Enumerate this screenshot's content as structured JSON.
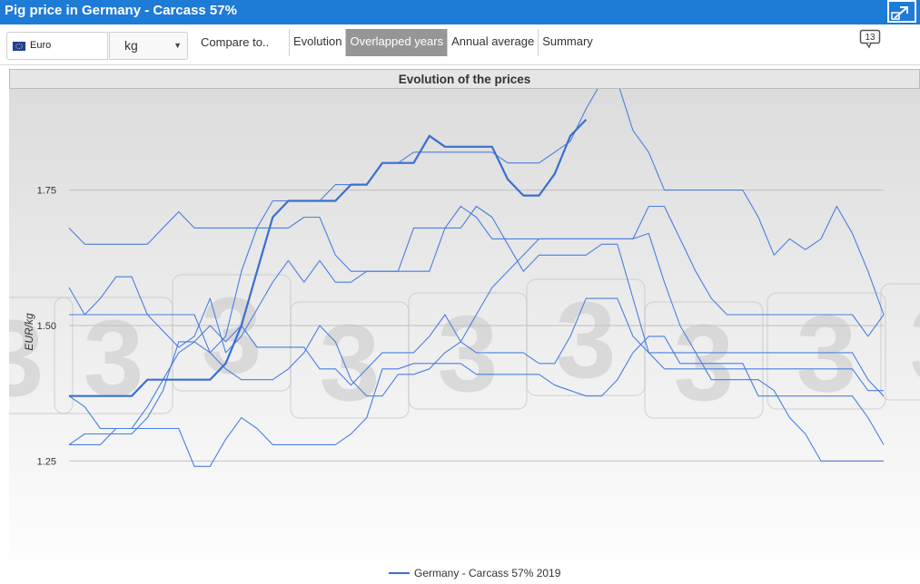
{
  "window": {
    "title": "Pig price in Germany - Carcass 57%"
  },
  "toolbar": {
    "currency": "Euro",
    "unit": "kg",
    "compare_label": "Compare to..",
    "tabs": [
      {
        "label": "Evolution",
        "active": false
      },
      {
        "label": "Overlapped years",
        "active": true
      },
      {
        "label": "Annual average",
        "active": false
      },
      {
        "label": "Summary",
        "active": false
      }
    ],
    "comments_count": "13"
  },
  "colors": {
    "titlebar": "#1e7bd6",
    "series_main": "#3a6fd0",
    "series_other": "#4a7fe0",
    "active_tab": "#969696"
  },
  "chart_data": {
    "type": "line",
    "title": "Evolution of the prices",
    "ylabel": "EUR/kg",
    "ylim": [
      1.1,
      1.92
    ],
    "yticks": [
      1.25,
      1.5,
      1.75
    ],
    "ytick_labels": [
      "1.25",
      "1.50",
      "1.75"
    ],
    "grid": true,
    "legend": {
      "position": "bottom-center",
      "entries": [
        "Germany - Carcass 57% 2019"
      ]
    },
    "watermark": "3",
    "x_count": 53,
    "series": [
      {
        "name": "Germany - Carcass 57% 2019",
        "highlight": true,
        "values": [
          1.37,
          1.37,
          1.37,
          1.37,
          1.37,
          1.4,
          1.4,
          1.4,
          1.4,
          1.4,
          1.43,
          1.5,
          1.6,
          1.7,
          1.73,
          1.73,
          1.73,
          1.73,
          1.76,
          1.76,
          1.8,
          1.8,
          1.8,
          1.85,
          1.83,
          1.83,
          1.83,
          1.83,
          1.77,
          1.74,
          1.74,
          1.78,
          1.85,
          1.88
        ]
      },
      {
        "values": [
          1.68,
          1.65,
          1.65,
          1.65,
          1.65,
          1.65,
          1.68,
          1.71,
          1.68,
          1.68,
          1.68,
          1.68,
          1.68,
          1.68,
          1.68,
          1.7,
          1.7,
          1.63,
          1.6,
          1.6,
          1.6,
          1.6,
          1.68,
          1.68,
          1.68,
          1.72,
          1.7,
          1.66,
          1.66,
          1.66,
          1.66,
          1.66,
          1.66,
          1.66,
          1.66,
          1.66,
          1.66,
          1.72,
          1.72,
          1.66,
          1.6,
          1.55,
          1.52,
          1.52,
          1.52,
          1.52,
          1.52,
          1.52,
          1.52,
          1.52,
          1.52,
          1.48,
          1.52
        ]
      },
      {
        "values": [
          1.57,
          1.52,
          1.55,
          1.59,
          1.59,
          1.52,
          1.49,
          1.46,
          1.48,
          1.55,
          1.45,
          1.48,
          1.53,
          1.58,
          1.62,
          1.58,
          1.62,
          1.58,
          1.58,
          1.6,
          1.6,
          1.6,
          1.6,
          1.6,
          1.68,
          1.68,
          1.72,
          1.7,
          1.65,
          1.6,
          1.63,
          1.63,
          1.63,
          1.63,
          1.65,
          1.65,
          1.55,
          1.45,
          1.42,
          1.42,
          1.42,
          1.42,
          1.42,
          1.42,
          1.42,
          1.42,
          1.42,
          1.42,
          1.42,
          1.42,
          1.42,
          1.38,
          1.38
        ]
      },
      {
        "values": [
          1.52,
          1.52,
          1.52,
          1.52,
          1.52,
          1.52,
          1.52,
          1.52,
          1.52,
          1.45,
          1.48,
          1.6,
          1.68,
          1.73,
          1.73,
          1.73,
          1.73,
          1.76,
          1.76,
          1.76,
          1.8,
          1.8,
          1.82,
          1.82,
          1.82,
          1.82,
          1.82,
          1.82,
          1.8,
          1.8,
          1.8,
          1.82,
          1.84,
          1.9,
          1.95,
          1.95,
          1.86,
          1.82,
          1.75,
          1.75,
          1.75,
          1.75,
          1.75,
          1.75,
          1.7,
          1.63,
          1.66,
          1.64,
          1.66,
          1.72,
          1.67,
          1.6,
          1.52
        ]
      },
      {
        "values": [
          1.37,
          1.35,
          1.31,
          1.31,
          1.31,
          1.35,
          1.4,
          1.45,
          1.47,
          1.5,
          1.47,
          1.5,
          1.46,
          1.46,
          1.46,
          1.46,
          1.42,
          1.42,
          1.39,
          1.42,
          1.45,
          1.45,
          1.45,
          1.48,
          1.52,
          1.47,
          1.45,
          1.45,
          1.45,
          1.45,
          1.43,
          1.43,
          1.48,
          1.55,
          1.55,
          1.55,
          1.48,
          1.45,
          1.45,
          1.45,
          1.45,
          1.45,
          1.45,
          1.45,
          1.45,
          1.45,
          1.45,
          1.45,
          1.45,
          1.45,
          1.45,
          1.4,
          1.37
        ]
      },
      {
        "values": [
          1.28,
          1.3,
          1.3,
          1.3,
          1.3,
          1.33,
          1.38,
          1.47,
          1.47,
          1.45,
          1.42,
          1.4,
          1.4,
          1.4,
          1.42,
          1.45,
          1.5,
          1.47,
          1.4,
          1.37,
          1.37,
          1.41,
          1.41,
          1.42,
          1.45,
          1.47,
          1.52,
          1.57,
          1.6,
          1.63,
          1.66,
          1.66,
          1.66,
          1.66,
          1.66,
          1.66,
          1.66,
          1.67,
          1.58,
          1.5,
          1.45,
          1.4,
          1.4,
          1.4,
          1.4,
          1.38,
          1.33,
          1.3,
          1.25,
          1.25,
          1.25,
          1.25,
          1.25
        ]
      },
      {
        "values": [
          1.28,
          1.28,
          1.28,
          1.31,
          1.31,
          1.31,
          1.31,
          1.31,
          1.24,
          1.24,
          1.29,
          1.33,
          1.31,
          1.28,
          1.28,
          1.28,
          1.28,
          1.28,
          1.3,
          1.33,
          1.42,
          1.42,
          1.43,
          1.43,
          1.43,
          1.43,
          1.41,
          1.41,
          1.41,
          1.41,
          1.41,
          1.39,
          1.38,
          1.37,
          1.37,
          1.4,
          1.45,
          1.48,
          1.48,
          1.43,
          1.43,
          1.43,
          1.43,
          1.43,
          1.37,
          1.37,
          1.37,
          1.37,
          1.37,
          1.37,
          1.37,
          1.33,
          1.28
        ]
      }
    ]
  }
}
